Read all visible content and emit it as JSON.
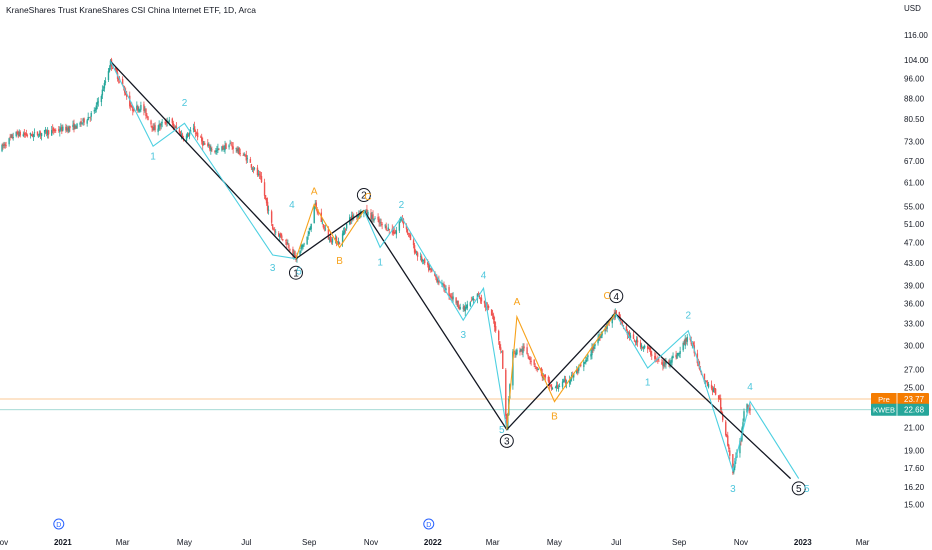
{
  "chart_data": {
    "type": "candlestick",
    "title": "KraneShares Trust KraneShares CSI China Internet ETF, 1D, Arca",
    "currency": "USD",
    "y_scale": "log",
    "ylim": [
      14.4,
      125
    ],
    "y_ticks": [
      "116.00",
      "104.00",
      "96.00",
      "88.00",
      "80.50",
      "73.00",
      "67.00",
      "61.00",
      "55.00",
      "51.00",
      "47.00",
      "43.00",
      "39.00",
      "36.00",
      "33.00",
      "30.00",
      "27.00",
      "25.00",
      "23.00",
      "21.00",
      "19.00",
      "17.60",
      "16.20",
      "15.00"
    ],
    "x_ticks": [
      "Nov",
      "2021",
      "Mar",
      "May",
      "Jul",
      "Sep",
      "Nov",
      "2022",
      "Mar",
      "May",
      "Jul",
      "Sep",
      "Nov",
      "2023",
      "Mar"
    ],
    "x_tick_dates": [
      "2020-11-01",
      "2021-01-01",
      "2021-03-01",
      "2021-05-01",
      "2021-07-01",
      "2021-09-01",
      "2021-11-01",
      "2022-01-01",
      "2022-03-01",
      "2022-05-01",
      "2022-07-01",
      "2022-09-01",
      "2022-11-01",
      "2023-01-01",
      "2023-03-01"
    ],
    "x_bold_ticks": [
      "2021",
      "2022",
      "2023"
    ],
    "xlim": [
      "2020-10-31",
      "2023-03-31"
    ],
    "dividend_markers": [
      "2020-12-28",
      "2021-12-28"
    ],
    "price_series": [
      [
        "2020-10-31",
        70.5
      ],
      [
        "2020-11-15",
        75.5
      ],
      [
        "2020-12-01",
        75
      ],
      [
        "2020-12-15",
        76
      ],
      [
        "2021-01-01",
        77
      ],
      [
        "2021-01-15",
        78
      ],
      [
        "2021-02-01",
        83
      ],
      [
        "2021-02-10",
        92
      ],
      [
        "2021-02-17",
        103
      ],
      [
        "2021-03-01",
        93
      ],
      [
        "2021-03-10",
        84
      ],
      [
        "2021-03-20",
        85
      ],
      [
        "2021-04-01",
        77
      ],
      [
        "2021-04-15",
        80
      ],
      [
        "2021-05-01",
        74
      ],
      [
        "2021-05-10",
        77
      ],
      [
        "2021-05-20",
        72
      ],
      [
        "2021-06-01",
        70
      ],
      [
        "2021-06-15",
        72
      ],
      [
        "2021-07-01",
        68
      ],
      [
        "2021-07-15",
        62
      ],
      [
        "2021-07-27",
        50
      ],
      [
        "2021-08-10",
        47
      ],
      [
        "2021-08-19",
        43.8
      ],
      [
        "2021-09-01",
        49
      ],
      [
        "2021-09-06",
        55.5
      ],
      [
        "2021-09-20",
        48
      ],
      [
        "2021-10-01",
        47
      ],
      [
        "2021-10-10",
        52
      ],
      [
        "2021-10-25",
        54
      ],
      [
        "2021-11-10",
        51
      ],
      [
        "2021-11-25",
        49
      ],
      [
        "2021-12-01",
        52.5
      ],
      [
        "2021-12-15",
        45
      ],
      [
        "2022-01-01",
        41
      ],
      [
        "2022-01-15",
        38
      ],
      [
        "2022-01-31",
        35
      ],
      [
        "2022-02-15",
        37.5
      ],
      [
        "2022-03-01",
        34
      ],
      [
        "2022-03-10",
        29
      ],
      [
        "2022-03-15",
        20.8
      ],
      [
        "2022-03-20",
        29
      ],
      [
        "2022-04-01",
        29.5
      ],
      [
        "2022-04-15",
        27
      ],
      [
        "2022-04-29",
        24.8
      ],
      [
        "2022-05-15",
        25.8
      ],
      [
        "2022-06-01",
        28
      ],
      [
        "2022-06-15",
        31.5
      ],
      [
        "2022-06-30",
        34.5
      ],
      [
        "2022-07-15",
        31
      ],
      [
        "2022-08-01",
        29.5
      ],
      [
        "2022-08-15",
        27.5
      ],
      [
        "2022-09-01",
        29
      ],
      [
        "2022-09-10",
        31.5
      ],
      [
        "2022-09-25",
        26
      ],
      [
        "2022-10-10",
        24
      ],
      [
        "2022-10-24",
        17.4
      ],
      [
        "2022-11-01",
        20
      ],
      [
        "2022-11-05",
        23.5
      ],
      [
        "2022-11-10",
        22.68
      ]
    ],
    "wave_lines": [
      {
        "name": "primary",
        "color": "#131722",
        "points": [
          [
            "2021-02-17",
            103.5
          ],
          [
            "2021-08-19",
            43.8
          ],
          [
            "2021-10-25",
            54
          ],
          [
            "2022-03-15",
            20.8
          ],
          [
            "2022-06-30",
            34.5
          ],
          [
            "2022-12-20",
            16.8
          ]
        ]
      },
      {
        "name": "minor-1",
        "color": "#4dd0e1",
        "points": [
          [
            "2021-02-17",
            103.5
          ],
          [
            "2021-03-31",
            71.5
          ],
          [
            "2021-05-01",
            79
          ],
          [
            "2021-07-27",
            44.5
          ],
          [
            "2021-08-19",
            43.8
          ]
        ]
      },
      {
        "name": "minor-2",
        "color": "#4dd0e1",
        "points": [
          [
            "2021-10-25",
            54
          ],
          [
            "2021-11-10",
            46
          ],
          [
            "2021-12-01",
            52.5
          ],
          [
            "2022-01-31",
            33.5
          ],
          [
            "2022-02-20",
            38.5
          ],
          [
            "2022-03-15",
            20.8
          ]
        ]
      },
      {
        "name": "minor-3",
        "color": "#4dd0e1",
        "points": [
          [
            "2022-06-30",
            34.5
          ],
          [
            "2022-08-01",
            27.2
          ],
          [
            "2022-09-10",
            32
          ],
          [
            "2022-10-24",
            17.4
          ],
          [
            "2022-11-10",
            23.5
          ],
          [
            "2022-12-28",
            16.8
          ]
        ]
      },
      {
        "name": "corrective-1",
        "color": "#f7a21b",
        "points": [
          [
            "2021-08-19",
            43.8
          ],
          [
            "2021-09-06",
            55.5
          ],
          [
            "2021-10-01",
            46
          ],
          [
            "2021-10-25",
            54
          ]
        ]
      },
      {
        "name": "corrective-2",
        "color": "#f7a21b",
        "points": [
          [
            "2022-03-15",
            20.8
          ],
          [
            "2022-03-25",
            34
          ],
          [
            "2022-05-01",
            23.5
          ],
          [
            "2022-06-30",
            34.5
          ]
        ]
      }
    ],
    "wave_labels": [
      {
        "text": "1",
        "style": "circled",
        "date": "2021-08-19",
        "price": 41.2
      },
      {
        "text": "2",
        "style": "circled",
        "date": "2021-10-25",
        "price": 57.8
      },
      {
        "text": "3",
        "style": "circled",
        "date": "2022-03-15",
        "price": 19.8
      },
      {
        "text": "4",
        "style": "circled",
        "date": "2022-07-01",
        "price": 37.2
      },
      {
        "text": "5",
        "style": "circled",
        "date": "2022-12-28",
        "price": 16.1
      },
      {
        "text": "1",
        "style": "cyan",
        "date": "2021-03-31",
        "price": 68.5
      },
      {
        "text": "2",
        "style": "cyan",
        "date": "2021-05-01",
        "price": 86.5
      },
      {
        "text": "3",
        "style": "cyan",
        "date": "2021-07-27",
        "price": 42.2
      },
      {
        "text": "4",
        "style": "cyan",
        "date": "2021-08-15",
        "price": 55.5
      },
      {
        "text": "5",
        "style": "cyan",
        "date": "2021-08-22",
        "price": 41.5
      },
      {
        "text": "1",
        "style": "cyan",
        "date": "2021-11-10",
        "price": 43.2
      },
      {
        "text": "2",
        "style": "cyan",
        "date": "2021-12-01",
        "price": 55.5
      },
      {
        "text": "3",
        "style": "cyan",
        "date": "2022-01-31",
        "price": 31.5
      },
      {
        "text": "4",
        "style": "cyan",
        "date": "2022-02-20",
        "price": 40.8
      },
      {
        "text": "5",
        "style": "cyan",
        "date": "2022-03-10",
        "price": 20.8
      },
      {
        "text": "1",
        "style": "cyan",
        "date": "2022-08-01",
        "price": 25.6
      },
      {
        "text": "2",
        "style": "cyan",
        "date": "2022-09-10",
        "price": 34.3
      },
      {
        "text": "3",
        "style": "cyan",
        "date": "2022-10-24",
        "price": 16.1
      },
      {
        "text": "4",
        "style": "cyan",
        "date": "2022-11-10",
        "price": 25.1
      },
      {
        "text": "5",
        "style": "cyan",
        "date": "2023-01-05",
        "price": 16.1
      },
      {
        "text": "A",
        "style": "orange",
        "date": "2021-09-06",
        "price": 58.8
      },
      {
        "text": "B",
        "style": "orange",
        "date": "2021-10-01",
        "price": 43.5
      },
      {
        "text": "C",
        "style": "orange",
        "date": "2021-10-29",
        "price": 57.5
      },
      {
        "text": "A",
        "style": "orange",
        "date": "2022-03-25",
        "price": 36.4
      },
      {
        "text": "B",
        "style": "orange",
        "date": "2022-05-01",
        "price": 22.1
      },
      {
        "text": "C",
        "style": "orange",
        "date": "2022-06-22",
        "price": 37.3
      }
    ],
    "price_lines": [
      {
        "label": "Pre",
        "value": 23.77,
        "display": "23.77",
        "color": "#f57c00"
      },
      {
        "label": "KWEB",
        "value": 22.68,
        "display": "22.68",
        "color": "#26a69a"
      }
    ],
    "up_color": "#26a69a",
    "down_color": "#ef5350",
    "grid": false
  }
}
